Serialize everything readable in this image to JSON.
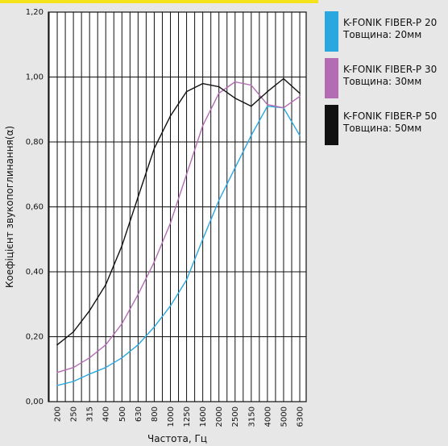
{
  "chart_data": {
    "type": "line",
    "xlabel": "Частота, Гц",
    "ylabel": "Коефіцієнт звукопоглинання(α)",
    "categories": [
      "200",
      "250",
      "315",
      "400",
      "500",
      "630",
      "800",
      "1000",
      "1250",
      "1600",
      "2000",
      "2500",
      "3150",
      "4000",
      "5000",
      "6300"
    ],
    "ylim": [
      0,
      1.2
    ],
    "yticks": [
      "0,00",
      "0,20",
      "0,40",
      "0,60",
      "0,80",
      "1,00",
      "1,20"
    ],
    "grid": true,
    "legend_position": "right",
    "series": [
      {
        "name": "K-FONIK FIBER-P 20",
        "subtitle": "Товщина: 20мм",
        "color": "#29a8e0",
        "values": [
          0.05,
          0.062,
          0.085,
          0.105,
          0.135,
          0.175,
          0.23,
          0.295,
          0.375,
          0.5,
          0.62,
          0.72,
          0.82,
          0.91,
          0.905,
          0.82
        ]
      },
      {
        "name": "K-FONIK FIBER-P 30",
        "subtitle": "Товщина: 30мм",
        "color": "#b36cb3",
        "values": [
          0.09,
          0.105,
          0.135,
          0.175,
          0.24,
          0.33,
          0.43,
          0.55,
          0.7,
          0.85,
          0.95,
          0.985,
          0.975,
          0.915,
          0.905,
          0.94
        ]
      },
      {
        "name": "K-FONIK FIBER-P 50",
        "subtitle": "Товщина: 50мм",
        "color": "#111111",
        "values": [
          0.175,
          0.215,
          0.28,
          0.36,
          0.48,
          0.63,
          0.78,
          0.88,
          0.955,
          0.98,
          0.97,
          0.935,
          0.91,
          0.955,
          0.995,
          0.95
        ]
      }
    ]
  }
}
